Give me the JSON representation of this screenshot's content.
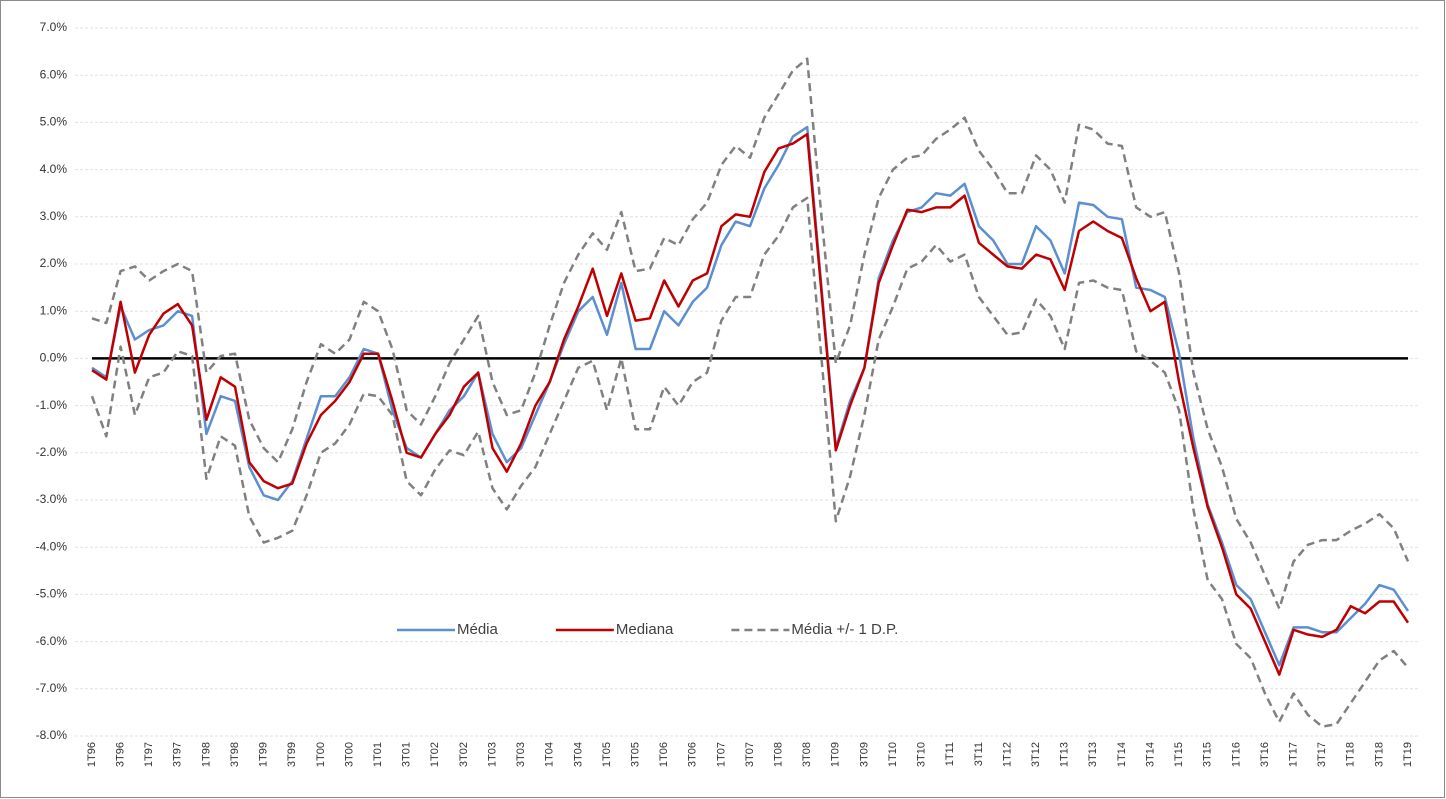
{
  "chart_data": {
    "type": "line",
    "categories": [
      "1T96",
      null,
      "3T96",
      null,
      "1T97",
      null,
      "3T97",
      null,
      "1T98",
      null,
      "3T98",
      null,
      "1T99",
      null,
      "3T99",
      null,
      "1T00",
      null,
      "3T00",
      null,
      "1T01",
      null,
      "3T01",
      null,
      "1T02",
      null,
      "3T02",
      null,
      "1T03",
      null,
      "3T03",
      null,
      "1T04",
      null,
      "3T04",
      null,
      "1T05",
      null,
      "3T05",
      null,
      "1T06",
      null,
      "3T06",
      null,
      "1T07",
      null,
      "3T07",
      null,
      "1T08",
      null,
      "3T08",
      null,
      "1T09",
      null,
      "3T09",
      null,
      "1T10",
      null,
      "3T10",
      null,
      "1T11",
      null,
      "3T11",
      null,
      "1T12",
      null,
      "3T12",
      null,
      "1T13",
      null,
      "3T13",
      null,
      "1T14",
      null,
      "3T14",
      null,
      "1T15",
      null,
      "3T15",
      null,
      "1T16",
      null,
      "3T16",
      null,
      "1T17",
      null,
      "3T17",
      null,
      "1T18",
      null,
      "3T18",
      null,
      "1T19"
    ],
    "series": [
      {
        "name": "Média",
        "color": "#5b8fd0",
        "values": [
          -0.2,
          -0.4,
          1.1,
          0.4,
          0.6,
          0.7,
          1.0,
          0.9,
          -1.6,
          -0.8,
          -0.9,
          -2.3,
          -2.9,
          -3.0,
          -2.6,
          -1.7,
          -0.8,
          -0.8,
          -0.4,
          0.2,
          0.1,
          -1.1,
          -1.9,
          -2.1,
          -1.6,
          -1.1,
          -0.8,
          -0.3,
          -1.6,
          -2.2,
          -1.9,
          -1.2,
          -0.5,
          0.3,
          1.0,
          1.3,
          0.5,
          1.6,
          0.2,
          0.2,
          1.0,
          0.7,
          1.2,
          1.5,
          2.4,
          2.9,
          2.8,
          3.6,
          4.1,
          4.7,
          4.9,
          1.5,
          -1.9,
          -0.9,
          -0.2,
          1.7,
          2.5,
          3.1,
          3.2,
          3.5,
          3.45,
          3.7,
          2.8,
          2.5,
          2.0,
          2.0,
          2.8,
          2.5,
          1.8,
          3.3,
          3.25,
          3.0,
          2.95,
          1.5,
          1.45,
          1.3,
          0.1,
          -1.7,
          -3.1,
          -3.9,
          -4.8,
          -5.1,
          -5.8,
          -6.5,
          -5.7,
          -5.7,
          -5.8,
          -5.8,
          -5.5,
          -5.2,
          -4.8,
          -4.9,
          -5.35
        ]
      },
      {
        "name": "Mediana",
        "color": "#c00000",
        "values": [
          -0.25,
          -0.45,
          1.2,
          -0.3,
          0.5,
          0.95,
          1.15,
          0.7,
          -1.3,
          -0.4,
          -0.6,
          -2.2,
          -2.6,
          -2.75,
          -2.65,
          -1.8,
          -1.2,
          -0.9,
          -0.5,
          0.1,
          0.1,
          -0.9,
          -2.0,
          -2.1,
          -1.6,
          -1.2,
          -0.6,
          -0.3,
          -1.9,
          -2.4,
          -1.8,
          -1.0,
          -0.5,
          0.4,
          1.1,
          1.9,
          0.9,
          1.8,
          0.8,
          0.85,
          1.65,
          1.1,
          1.65,
          1.8,
          2.8,
          3.05,
          3.0,
          3.95,
          4.45,
          4.55,
          4.75,
          1.4,
          -1.95,
          -1.0,
          -0.2,
          1.6,
          2.4,
          3.15,
          3.1,
          3.2,
          3.2,
          3.45,
          2.45,
          2.2,
          1.95,
          1.9,
          2.2,
          2.1,
          1.45,
          2.7,
          2.9,
          2.7,
          2.55,
          1.7,
          1.0,
          1.2,
          -0.5,
          -1.9,
          -3.15,
          -4.0,
          -5.0,
          -5.3,
          -6.0,
          -6.7,
          -5.75,
          -5.85,
          -5.9,
          -5.75,
          -5.25,
          -5.4,
          -5.15,
          -5.15,
          -5.6
        ]
      },
      {
        "name": "Média +/- 1 D.P.",
        "color": "#808080",
        "dashed": true,
        "upper": [
          0.85,
          0.75,
          1.85,
          1.95,
          1.65,
          1.85,
          2.0,
          1.85,
          -0.3,
          0.05,
          0.1,
          -1.3,
          -1.9,
          -2.2,
          -1.5,
          -0.5,
          0.3,
          0.1,
          0.4,
          1.2,
          1.0,
          0.2,
          -1.1,
          -1.4,
          -0.8,
          -0.1,
          0.4,
          0.9,
          -0.5,
          -1.2,
          -1.1,
          -0.3,
          0.7,
          1.6,
          2.2,
          2.65,
          2.3,
          3.1,
          1.85,
          1.9,
          2.55,
          2.4,
          2.95,
          3.3,
          4.1,
          4.5,
          4.25,
          5.1,
          5.6,
          6.1,
          6.35,
          3.0,
          -0.1,
          0.7,
          2.2,
          3.4,
          4.0,
          4.25,
          4.3,
          4.65,
          4.85,
          5.1,
          4.4,
          4.0,
          3.5,
          3.5,
          4.3,
          4.0,
          3.3,
          4.95,
          4.85,
          4.55,
          4.5,
          3.2,
          3.0,
          3.1,
          1.8,
          -0.3,
          -1.5,
          -2.3,
          -3.4,
          -3.9,
          -4.6,
          -5.3,
          -4.3,
          -3.95,
          -3.85,
          -3.85,
          -3.65,
          -3.5,
          -3.3,
          -3.6,
          -4.3
        ],
        "lower": [
          -0.8,
          -1.65,
          0.25,
          -1.2,
          -0.4,
          -0.3,
          0.15,
          0.05,
          -2.55,
          -1.65,
          -1.85,
          -3.35,
          -3.9,
          -3.8,
          -3.65,
          -2.9,
          -2.0,
          -1.8,
          -1.4,
          -0.75,
          -0.8,
          -1.2,
          -2.6,
          -2.9,
          -2.35,
          -1.95,
          -2.05,
          -1.55,
          -2.75,
          -3.2,
          -2.7,
          -2.3,
          -1.6,
          -0.9,
          -0.2,
          -0.05,
          -1.1,
          0.0,
          -1.5,
          -1.5,
          -0.6,
          -1.0,
          -0.5,
          -0.3,
          0.8,
          1.3,
          1.3,
          2.2,
          2.6,
          3.2,
          3.4,
          0.0,
          -3.45,
          -2.5,
          -1.2,
          0.4,
          1.1,
          1.9,
          2.05,
          2.4,
          2.05,
          2.2,
          1.3,
          0.9,
          0.5,
          0.55,
          1.25,
          0.9,
          0.2,
          1.6,
          1.65,
          1.5,
          1.45,
          0.15,
          -0.05,
          -0.3,
          -1.1,
          -3.2,
          -4.7,
          -5.1,
          -6.05,
          -6.35,
          -7.1,
          -7.7,
          -7.1,
          -7.55,
          -7.8,
          -7.75,
          -7.3,
          -6.85,
          -6.4,
          -6.2,
          -6.55
        ]
      }
    ],
    "ylim": [
      -8,
      7
    ],
    "yticks": [
      {
        "value": -8,
        "label": "-8.0%"
      },
      {
        "value": -7,
        "label": "-7.0%"
      },
      {
        "value": -6,
        "label": "-6.0%"
      },
      {
        "value": -5,
        "label": "-5.0%"
      },
      {
        "value": -4,
        "label": "-4.0%"
      },
      {
        "value": -3,
        "label": "-3.0%"
      },
      {
        "value": -2,
        "label": "-2.0%"
      },
      {
        "value": -1,
        "label": "-1.0%"
      },
      {
        "value": 0,
        "label": "0.0%"
      },
      {
        "value": 1,
        "label": "1.0%"
      },
      {
        "value": 2,
        "label": "2.0%"
      },
      {
        "value": 3,
        "label": "3.0%"
      },
      {
        "value": 4,
        "label": "4.0%"
      },
      {
        "value": 5,
        "label": "5.0%"
      },
      {
        "value": 6,
        "label": "6.0%"
      },
      {
        "value": 7,
        "label": "7.0%"
      }
    ],
    "grid": true,
    "zero_line": true,
    "legend": "lower-center"
  }
}
